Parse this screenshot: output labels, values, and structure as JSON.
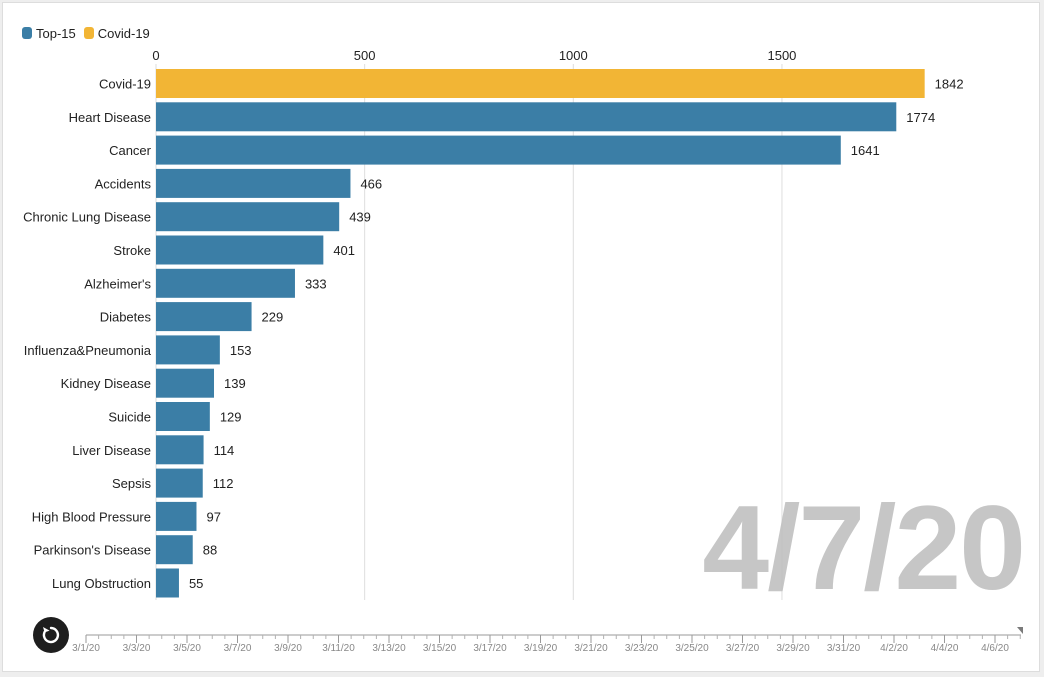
{
  "legend": [
    {
      "label": "Top-15",
      "color": "#3b7ea6"
    },
    {
      "label": "Covid-19",
      "color": "#f2b535"
    }
  ],
  "current_date": "4/7/20",
  "timeline": {
    "labels": [
      "3/1/20",
      "3/3/20",
      "3/5/20",
      "3/7/20",
      "3/9/20",
      "3/11/20",
      "3/13/20",
      "3/15/20",
      "3/17/20",
      "3/19/20",
      "3/21/20",
      "3/23/20",
      "3/25/20",
      "3/27/20",
      "3/29/20",
      "3/31/20",
      "4/2/20",
      "4/4/20",
      "4/6/20"
    ]
  },
  "replay_icon": "replay-icon",
  "chart_data": {
    "type": "bar",
    "orientation": "horizontal",
    "xlim": [
      0,
      1842
    ],
    "x_ticks": [
      0,
      500,
      1000,
      1500
    ],
    "grid": true,
    "legend_position": "top-left",
    "bars": [
      {
        "label": "Covid-19",
        "value": 1842,
        "group": "Covid-19"
      },
      {
        "label": "Heart Disease",
        "value": 1774,
        "group": "Top-15"
      },
      {
        "label": "Cancer",
        "value": 1641,
        "group": "Top-15"
      },
      {
        "label": "Accidents",
        "value": 466,
        "group": "Top-15"
      },
      {
        "label": "Chronic Lung Disease",
        "value": 439,
        "group": "Top-15"
      },
      {
        "label": "Stroke",
        "value": 401,
        "group": "Top-15"
      },
      {
        "label": "Alzheimer's",
        "value": 333,
        "group": "Top-15"
      },
      {
        "label": "Diabetes",
        "value": 229,
        "group": "Top-15"
      },
      {
        "label": "Influenza&Pneumonia",
        "value": 153,
        "group": "Top-15"
      },
      {
        "label": "Kidney Disease",
        "value": 139,
        "group": "Top-15"
      },
      {
        "label": "Suicide",
        "value": 129,
        "group": "Top-15"
      },
      {
        "label": "Liver Disease",
        "value": 114,
        "group": "Top-15"
      },
      {
        "label": "Sepsis",
        "value": 112,
        "group": "Top-15"
      },
      {
        "label": "High Blood Pressure",
        "value": 97,
        "group": "Top-15"
      },
      {
        "label": "Parkinson's Disease",
        "value": 88,
        "group": "Top-15"
      },
      {
        "label": "Lung Obstruction",
        "value": 55,
        "group": "Top-15"
      }
    ]
  }
}
